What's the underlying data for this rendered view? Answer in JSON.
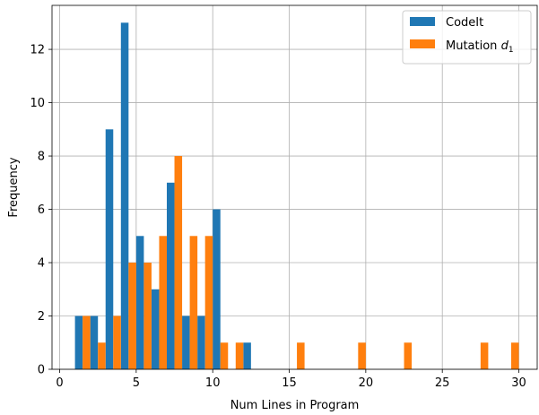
{
  "chart_data": {
    "type": "bar",
    "xlabel": "Num Lines in Program",
    "ylabel": "Frequency",
    "xlim": [
      -0.5,
      31.2
    ],
    "ylim": [
      0,
      13.65
    ],
    "xticks": [
      0,
      5,
      10,
      15,
      20,
      25,
      30
    ],
    "yticks": [
      0,
      2,
      4,
      6,
      8,
      10,
      12
    ],
    "grid": true,
    "legend_position": "top-right",
    "bin_width": 1,
    "series": [
      {
        "name": "CodeIt",
        "color": "#1f77b4",
        "x": [
          1,
          2,
          3,
          4,
          5,
          6,
          7,
          8,
          9,
          10,
          12
        ],
        "values": [
          2,
          2,
          9,
          13,
          5,
          3,
          7,
          2,
          2,
          6,
          1
        ]
      },
      {
        "name": "Mutation d1",
        "label_main": "Mutation ",
        "label_italic": "d",
        "label_sub": "1",
        "color": "#ff7f0e",
        "x": [
          1,
          2,
          3,
          4,
          5,
          6,
          7,
          8,
          9,
          10,
          11,
          15,
          19,
          22,
          27,
          29
        ],
        "values": [
          2,
          1,
          2,
          4,
          4,
          5,
          8,
          5,
          5,
          1,
          1,
          1,
          1,
          1,
          1,
          1
        ]
      }
    ]
  }
}
